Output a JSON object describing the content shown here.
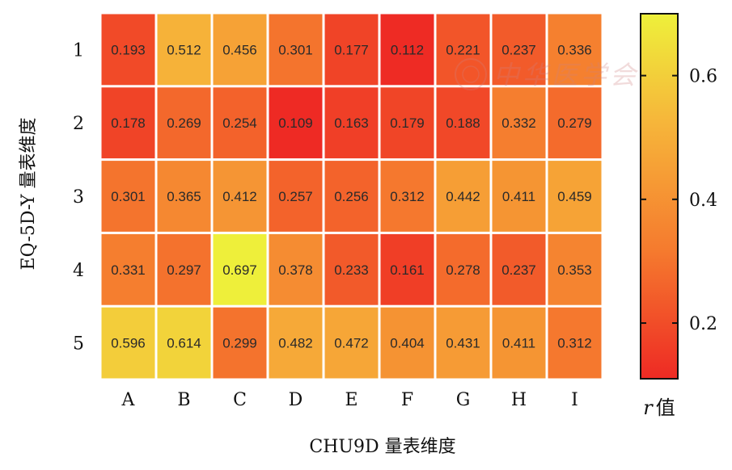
{
  "chart_data": {
    "type": "heatmap",
    "x_categories": [
      "A",
      "B",
      "C",
      "D",
      "E",
      "F",
      "G",
      "H",
      "I"
    ],
    "y_categories": [
      "1",
      "2",
      "3",
      "4",
      "5"
    ],
    "values": [
      [
        0.193,
        0.512,
        0.456,
        0.301,
        0.177,
        0.112,
        0.221,
        0.237,
        0.336
      ],
      [
        0.178,
        0.269,
        0.254,
        0.109,
        0.163,
        0.179,
        0.188,
        0.332,
        0.279
      ],
      [
        0.301,
        0.365,
        0.412,
        0.257,
        0.256,
        0.312,
        0.442,
        0.411,
        0.459
      ],
      [
        0.331,
        0.297,
        0.697,
        0.378,
        0.233,
        0.161,
        0.278,
        0.237,
        0.353
      ],
      [
        0.596,
        0.614,
        0.299,
        0.482,
        0.472,
        0.404,
        0.431,
        0.411,
        0.312
      ]
    ],
    "xlabel": "CHU9D 量表维度",
    "ylabel": "EQ-5D-Y 量表维度",
    "colorbar": {
      "label_italic": "r",
      "label": "值",
      "range": [
        0.11,
        0.7
      ],
      "ticks": [
        0.2,
        0.4,
        0.6
      ],
      "tick_labels": [
        "0.2",
        "0.4",
        "0.6"
      ],
      "colors": [
        "#ee2a24",
        "#f57a2e",
        "#f6b53a",
        "#eef03a"
      ]
    },
    "watermark": "中华医学会"
  }
}
